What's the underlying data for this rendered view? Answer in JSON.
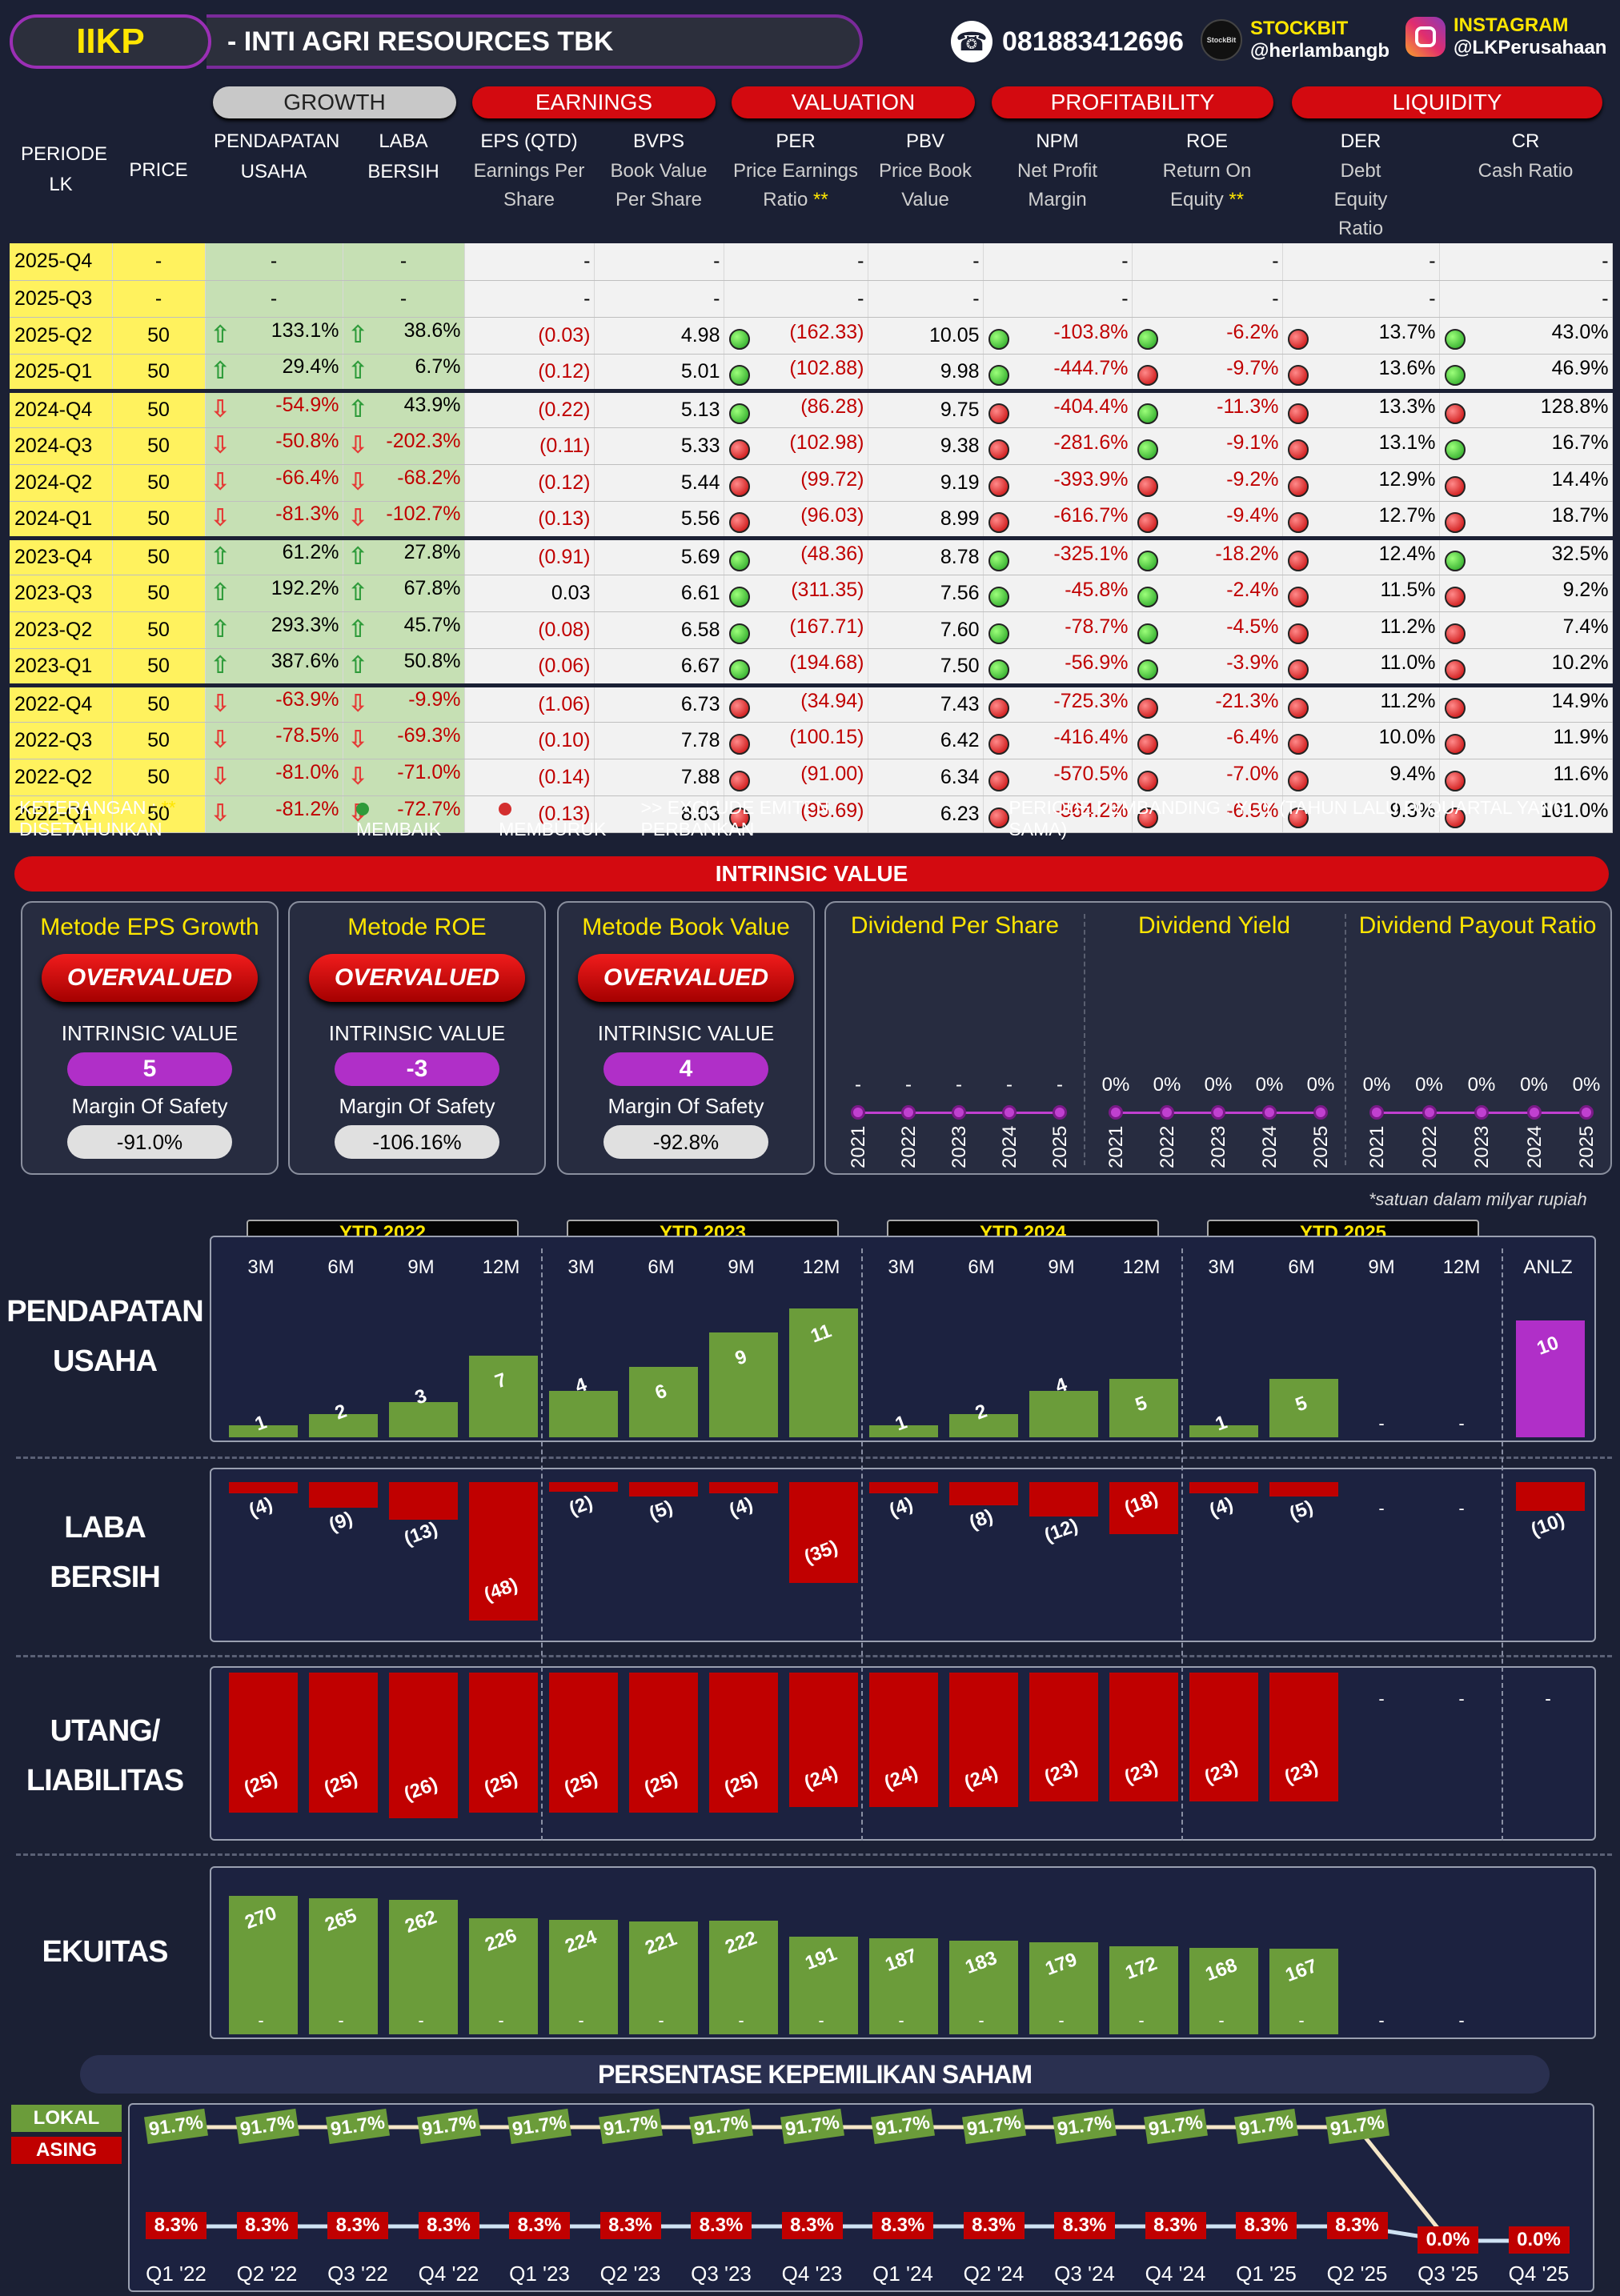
{
  "header": {
    "ticker": "IIKP",
    "company": "-  INTI AGRI RESOURCES TBK",
    "phone": "081883412696",
    "stockbit_label": "STOCKBIT",
    "stockbit_handle": "@herlambangb",
    "stockbit_logo": "StockBit",
    "instagram_label": "INSTAGRAM",
    "instagram_handle": "@LKPerusahaan"
  },
  "table": {
    "groups": [
      "GROWTH",
      "EARNINGS",
      "VALUATION",
      "PROFITABILITY",
      "LIQUIDITY"
    ],
    "columns": {
      "periode": "PERIODE LK",
      "price": "PRICE",
      "pend": "PENDAPATAN USAHA",
      "laba": "LABA BERSIH",
      "eps": "EPS (QTD)",
      "eps_sub": "Earnings Per Share",
      "bvps": "BVPS",
      "bvps_sub": "Book Value Per Share",
      "per": "PER",
      "per_sub": "Price Earnings Ratio",
      "per_star": "**",
      "pbv": "PBV",
      "pbv_sub": "Price Book Value",
      "npm": "NPM",
      "npm_sub": "Net Profit Margin",
      "roe": "ROE",
      "roe_sub": "Return On Equity",
      "roe_star": "**",
      "der": "DER",
      "der_sub": "Debt Equity Ratio",
      "cr": "CR",
      "cr_sub": "Cash Ratio"
    },
    "rows": [
      {
        "p": "2025-Q4",
        "price": "-",
        "pa": "",
        "pend": "-",
        "la": "",
        "laba": "-",
        "eps": "-",
        "bvps": "-",
        "bd": "",
        "per": "-",
        "pbv": "-",
        "pd": "",
        "npm": "-",
        "nd": "",
        "roe": "-",
        "rd": "",
        "der": "-",
        "dd": "",
        "cr": "-"
      },
      {
        "p": "2025-Q3",
        "price": "-",
        "pa": "",
        "pend": "-",
        "la": "",
        "laba": "-",
        "eps": "-",
        "bvps": "-",
        "bd": "",
        "per": "-",
        "pbv": "-",
        "pd": "",
        "npm": "-",
        "nd": "",
        "roe": "-",
        "rd": "",
        "der": "-",
        "dd": "",
        "cr": "-"
      },
      {
        "p": "2025-Q2",
        "price": "50",
        "pa": "up",
        "pend": "133.1%",
        "la": "up",
        "laba": "38.6%",
        "eps": "(0.03)",
        "bvps": "4.98",
        "bd": "green",
        "per": "(162.33)",
        "pbv": "10.05",
        "pd": "green",
        "npm": "-103.8%",
        "nd": "green",
        "roe": "-6.2%",
        "rd": "red",
        "der": "13.7%",
        "dd": "green",
        "cr": "43.0%"
      },
      {
        "p": "2025-Q1",
        "price": "50",
        "pa": "up",
        "pend": "29.4%",
        "la": "up",
        "laba": "6.7%",
        "eps": "(0.12)",
        "bvps": "5.01",
        "bd": "green",
        "per": "(102.88)",
        "pbv": "9.98",
        "pd": "green",
        "npm": "-444.7%",
        "nd": "red",
        "roe": "-9.7%",
        "rd": "red",
        "der": "13.6%",
        "dd": "green",
        "cr": "46.9%"
      },
      {
        "p": "2024-Q4",
        "price": "50",
        "pa": "dn",
        "pend": "-54.9%",
        "la": "up",
        "laba": "43.9%",
        "eps": "(0.22)",
        "bvps": "5.13",
        "bd": "green",
        "per": "(86.28)",
        "pbv": "9.75",
        "pd": "red",
        "npm": "-404.4%",
        "nd": "green",
        "roe": "-11.3%",
        "rd": "red",
        "der": "13.3%",
        "dd": "red",
        "cr": "128.8%"
      },
      {
        "p": "2024-Q3",
        "price": "50",
        "pa": "dn",
        "pend": "-50.8%",
        "la": "dn",
        "laba": "-202.3%",
        "eps": "(0.11)",
        "bvps": "5.33",
        "bd": "red",
        "per": "(102.98)",
        "pbv": "9.38",
        "pd": "red",
        "npm": "-281.6%",
        "nd": "green",
        "roe": "-9.1%",
        "rd": "red",
        "der": "13.1%",
        "dd": "green",
        "cr": "16.7%"
      },
      {
        "p": "2024-Q2",
        "price": "50",
        "pa": "dn",
        "pend": "-66.4%",
        "la": "dn",
        "laba": "-68.2%",
        "eps": "(0.12)",
        "bvps": "5.44",
        "bd": "red",
        "per": "(99.72)",
        "pbv": "9.19",
        "pd": "red",
        "npm": "-393.9%",
        "nd": "red",
        "roe": "-9.2%",
        "rd": "red",
        "der": "12.9%",
        "dd": "red",
        "cr": "14.4%"
      },
      {
        "p": "2024-Q1",
        "price": "50",
        "pa": "dn",
        "pend": "-81.3%",
        "la": "dn",
        "laba": "-102.7%",
        "eps": "(0.13)",
        "bvps": "5.56",
        "bd": "red",
        "per": "(96.03)",
        "pbv": "8.99",
        "pd": "red",
        "npm": "-616.7%",
        "nd": "red",
        "roe": "-9.4%",
        "rd": "red",
        "der": "12.7%",
        "dd": "red",
        "cr": "18.7%"
      },
      {
        "p": "2023-Q4",
        "price": "50",
        "pa": "up",
        "pend": "61.2%",
        "la": "up",
        "laba": "27.8%",
        "eps": "(0.91)",
        "bvps": "5.69",
        "bd": "green",
        "per": "(48.36)",
        "pbv": "8.78",
        "pd": "green",
        "npm": "-325.1%",
        "nd": "green",
        "roe": "-18.2%",
        "rd": "red",
        "der": "12.4%",
        "dd": "green",
        "cr": "32.5%"
      },
      {
        "p": "2023-Q3",
        "price": "50",
        "pa": "up",
        "pend": "192.2%",
        "la": "up",
        "laba": "67.8%",
        "eps": "0.03",
        "bvps": "6.61",
        "bd": "green",
        "per": "(311.35)",
        "pbv": "7.56",
        "pd": "green",
        "npm": "-45.8%",
        "nd": "green",
        "roe": "-2.4%",
        "rd": "red",
        "der": "11.5%",
        "dd": "red",
        "cr": "9.2%"
      },
      {
        "p": "2023-Q2",
        "price": "50",
        "pa": "up",
        "pend": "293.3%",
        "la": "up",
        "laba": "45.7%",
        "eps": "(0.08)",
        "bvps": "6.58",
        "bd": "green",
        "per": "(167.71)",
        "pbv": "7.60",
        "pd": "green",
        "npm": "-78.7%",
        "nd": "green",
        "roe": "-4.5%",
        "rd": "red",
        "der": "11.2%",
        "dd": "red",
        "cr": "7.4%"
      },
      {
        "p": "2023-Q1",
        "price": "50",
        "pa": "up",
        "pend": "387.6%",
        "la": "up",
        "laba": "50.8%",
        "eps": "(0.06)",
        "bvps": "6.67",
        "bd": "green",
        "per": "(194.68)",
        "pbv": "7.50",
        "pd": "green",
        "npm": "-56.9%",
        "nd": "green",
        "roe": "-3.9%",
        "rd": "red",
        "der": "11.0%",
        "dd": "red",
        "cr": "10.2%"
      },
      {
        "p": "2022-Q4",
        "price": "50",
        "pa": "dn",
        "pend": "-63.9%",
        "la": "dn",
        "laba": "-9.9%",
        "eps": "(1.06)",
        "bvps": "6.73",
        "bd": "red",
        "per": "(34.94)",
        "pbv": "7.43",
        "pd": "red",
        "npm": "-725.3%",
        "nd": "red",
        "roe": "-21.3%",
        "rd": "red",
        "der": "11.2%",
        "dd": "red",
        "cr": "14.9%"
      },
      {
        "p": "2022-Q3",
        "price": "50",
        "pa": "dn",
        "pend": "-78.5%",
        "la": "dn",
        "laba": "-69.3%",
        "eps": "(0.10)",
        "bvps": "7.78",
        "bd": "red",
        "per": "(100.15)",
        "pbv": "6.42",
        "pd": "red",
        "npm": "-416.4%",
        "nd": "red",
        "roe": "-6.4%",
        "rd": "red",
        "der": "10.0%",
        "dd": "red",
        "cr": "11.9%"
      },
      {
        "p": "2022-Q2",
        "price": "50",
        "pa": "dn",
        "pend": "-81.0%",
        "la": "dn",
        "laba": "-71.0%",
        "eps": "(0.14)",
        "bvps": "7.88",
        "bd": "red",
        "per": "(91.00)",
        "pbv": "6.34",
        "pd": "red",
        "npm": "-570.5%",
        "nd": "red",
        "roe": "-7.0%",
        "rd": "red",
        "der": "9.4%",
        "dd": "red",
        "cr": "11.6%"
      },
      {
        "p": "2022-Q1",
        "price": "50",
        "pa": "dn",
        "pend": "-81.2%",
        "la": "dn",
        "laba": "-72.7%",
        "eps": "(0.13)",
        "bvps": "8.03",
        "bd": "red",
        "per": "(95.69)",
        "pbv": "6.23",
        "pd": "red",
        "npm": "-564.2%",
        "nd": "red",
        "roe": "-6.5%",
        "rd": "red",
        "der": "9.3%",
        "dd": "red",
        "cr": "101.0%"
      }
    ]
  },
  "legend": {
    "keterangan": "KETERANGAN :",
    "star": "**",
    "disetahunkan": "DISETAHUNKAN",
    "membaik": "MEMBAIK",
    "memburuk": "MEMBURUK",
    "exclude": ">> EXCLUDE EMITEN PERBANKAN",
    "pembanding": "PERIODE PEMBANDING : YOY (TAHUN LALU DI QUARTAL YANG SAMA)",
    "green": "#2e9b3a",
    "red": "#d32f2f"
  },
  "intrinsic": {
    "title": "INTRINSIC VALUE",
    "methods": [
      {
        "title": "Metode EPS Growth",
        "status": "OVERVALUED",
        "iv_label": "INTRINSIC VALUE",
        "iv": "5",
        "mos_label": "Margin Of Safety",
        "mos": "-91.0%"
      },
      {
        "title": "Metode ROE",
        "status": "OVERVALUED",
        "iv_label": "INTRINSIC VALUE",
        "iv": "-3",
        "mos_label": "Margin Of Safety",
        "mos": "-106.16%"
      },
      {
        "title": "Metode Book Value",
        "status": "OVERVALUED",
        "iv_label": "INTRINSIC VALUE",
        "iv": "4",
        "mos_label": "Margin Of Safety",
        "mos": "-92.8%"
      }
    ],
    "dividend": [
      {
        "title": "Dividend Per Share",
        "years": [
          "2021",
          "2022",
          "2023",
          "2024",
          "2025"
        ],
        "values": [
          "-",
          "-",
          "-",
          "-",
          "-"
        ]
      },
      {
        "title": "Dividend Yield",
        "years": [
          "2021",
          "2022",
          "2023",
          "2024",
          "2025"
        ],
        "values": [
          "0%",
          "0%",
          "0%",
          "0%",
          "0%"
        ]
      },
      {
        "title": "Dividend Payout Ratio",
        "years": [
          "2021",
          "2022",
          "2023",
          "2024",
          "2025"
        ],
        "values": [
          "0%",
          "0%",
          "0%",
          "0%",
          "0%"
        ]
      }
    ]
  },
  "charts": {
    "note": "*satuan dalam milyar rupiah",
    "ytd": [
      "YTD 2022",
      "YTD 2023",
      "YTD 2024",
      "YTD 2025"
    ],
    "periods": [
      "3M",
      "6M",
      "9M",
      "12M",
      "3M",
      "6M",
      "9M",
      "12M",
      "3M",
      "6M",
      "9M",
      "12M",
      "3M",
      "6M",
      "9M",
      "12M",
      "ANLZ"
    ],
    "labels": {
      "pendapatan": [
        "PENDAPATAN",
        "USAHA"
      ],
      "laba": [
        "LABA",
        "BERSIH"
      ],
      "utang": [
        "UTANG/",
        "LIABILITAS"
      ],
      "ekuitas": [
        "EKUITAS"
      ]
    }
  },
  "ownership": {
    "title": "PERSENTASE KEPEMILIKAN SAHAM",
    "lokal_label": "LOKAL",
    "asing_label": "ASING",
    "lokal_color": "#6b9c3a",
    "asing_color": "#c00000"
  },
  "chart_data": [
    {
      "type": "bar",
      "title": "PENDAPATAN USAHA",
      "unit": "milyar rupiah",
      "categories": [
        "YTD 2022 3M",
        "YTD 2022 6M",
        "YTD 2022 9M",
        "YTD 2022 12M",
        "YTD 2023 3M",
        "YTD 2023 6M",
        "YTD 2023 9M",
        "YTD 2023 12M",
        "YTD 2024 3M",
        "YTD 2024 6M",
        "YTD 2024 9M",
        "YTD 2024 12M",
        "YTD 2025 3M",
        "YTD 2025 6M",
        "YTD 2025 9M",
        "YTD 2025 12M",
        "ANLZ"
      ],
      "values": [
        1,
        2,
        3,
        7,
        4,
        6,
        9,
        11,
        1,
        2,
        4,
        5,
        1,
        5,
        null,
        null,
        10
      ],
      "labels": [
        "1",
        "2",
        "3",
        "7",
        "4",
        "6",
        "9",
        "11",
        "1",
        "2",
        "4",
        "5",
        "1",
        "5",
        "-",
        "-",
        "10"
      ],
      "ylim": [
        0,
        12
      ]
    },
    {
      "type": "bar",
      "title": "LABA BERSIH",
      "unit": "milyar rupiah",
      "values": [
        -4,
        -9,
        -13,
        -48,
        -2,
        -5,
        -4,
        -35,
        -4,
        -8,
        -12,
        -18,
        -4,
        -5,
        null,
        null,
        -10
      ],
      "labels": [
        "(4)",
        "(9)",
        "(13)",
        "(48)",
        "(2)",
        "(5)",
        "(4)",
        "(35)",
        "(4)",
        "(8)",
        "(12)",
        "(18)",
        "(4)",
        "(5)",
        "-",
        "-",
        "(10)"
      ],
      "ylim": [
        -50,
        0
      ]
    },
    {
      "type": "bar",
      "title": "UTANG/LIABILITAS",
      "unit": "milyar rupiah",
      "values": [
        -25,
        -25,
        -26,
        -25,
        -25,
        -25,
        -25,
        -24,
        -24,
        -24,
        -23,
        -23,
        -23,
        -23,
        null,
        null,
        null
      ],
      "labels": [
        "(25)",
        "(25)",
        "(26)",
        "(25)",
        "(25)",
        "(25)",
        "(25)",
        "(24)",
        "(24)",
        "(24)",
        "(23)",
        "(23)",
        "(23)",
        "(23)",
        "-",
        "-",
        "-"
      ],
      "ylim": [
        -26,
        0
      ]
    },
    {
      "type": "bar",
      "title": "EKUITAS",
      "unit": "milyar rupiah",
      "values": [
        270,
        265,
        262,
        226,
        224,
        221,
        222,
        191,
        187,
        183,
        179,
        172,
        168,
        167,
        null,
        null
      ],
      "labels": [
        "270",
        "265",
        "262",
        "226",
        "224",
        "221",
        "222",
        "191",
        "187",
        "183",
        "179",
        "172",
        "168",
        "167",
        "-",
        "-"
      ],
      "ylim": [
        0,
        280
      ]
    },
    {
      "type": "line",
      "title": "PERSENTASE KEPEMILIKAN SAHAM",
      "x": [
        "Q1 '22",
        "Q2 '22",
        "Q3 '22",
        "Q4 '22",
        "Q1 '23",
        "Q2 '23",
        "Q3 '23",
        "Q4 '23",
        "Q1 '24",
        "Q2 '24",
        "Q3 '24",
        "Q4 '24",
        "Q1 '25",
        "Q2 '25",
        "Q3 '25",
        "Q4 '25"
      ],
      "series": [
        {
          "name": "LOKAL",
          "values": [
            91.7,
            91.7,
            91.7,
            91.7,
            91.7,
            91.7,
            91.7,
            91.7,
            91.7,
            91.7,
            91.7,
            91.7,
            91.7,
            91.7,
            0.0,
            0.0
          ],
          "labels": [
            "91.7%",
            "91.7%",
            "91.7%",
            "91.7%",
            "91.7%",
            "91.7%",
            "91.7%",
            "91.7%",
            "91.7%",
            "91.7%",
            "91.7%",
            "91.7%",
            "91.7%",
            "91.7%",
            "",
            ""
          ]
        },
        {
          "name": "ASING",
          "values": [
            8.3,
            8.3,
            8.3,
            8.3,
            8.3,
            8.3,
            8.3,
            8.3,
            8.3,
            8.3,
            8.3,
            8.3,
            8.3,
            8.3,
            0.0,
            0.0
          ],
          "labels": [
            "8.3%",
            "8.3%",
            "8.3%",
            "8.3%",
            "8.3%",
            "8.3%",
            "8.3%",
            "8.3%",
            "8.3%",
            "8.3%",
            "8.3%",
            "8.3%",
            "8.3%",
            "8.3%",
            "0.0%",
            "0.0%"
          ]
        }
      ],
      "ylim": [
        0,
        100
      ]
    }
  ]
}
